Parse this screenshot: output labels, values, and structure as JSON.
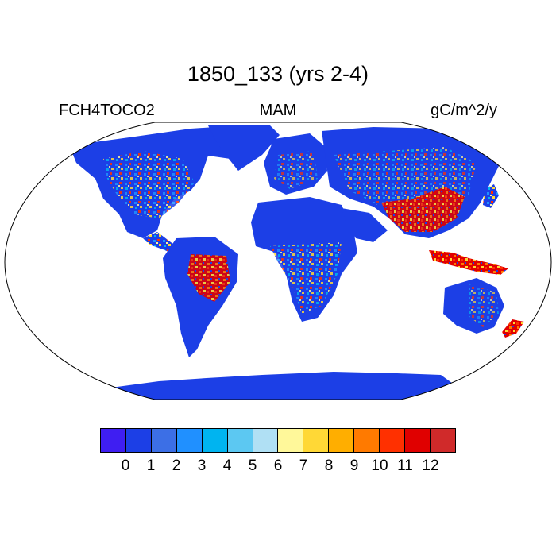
{
  "title": "1850_133 (yrs 2-4)",
  "left_label": "FCH4TOCO2",
  "center_label": "MAM",
  "right_label": "gC/m^2/y",
  "projection": "robinson",
  "colorbar": {
    "colors": [
      "#3f1ef2",
      "#1c3fe6",
      "#3c6fe6",
      "#2090ff",
      "#00b4f0",
      "#5cc8f2",
      "#b0e0f4",
      "#fff89a",
      "#ffd836",
      "#ffae00",
      "#ff7a00",
      "#ff3000",
      "#e00000",
      "#d02a2a"
    ],
    "ticks": [
      "0",
      "1",
      "2",
      "3",
      "4",
      "5",
      "6",
      "7",
      "8",
      "9",
      "10",
      "11",
      "12"
    ]
  },
  "colors": {
    "land_base": "#1c3fe6",
    "ocean": "#ffffff",
    "outline": "#000000"
  }
}
